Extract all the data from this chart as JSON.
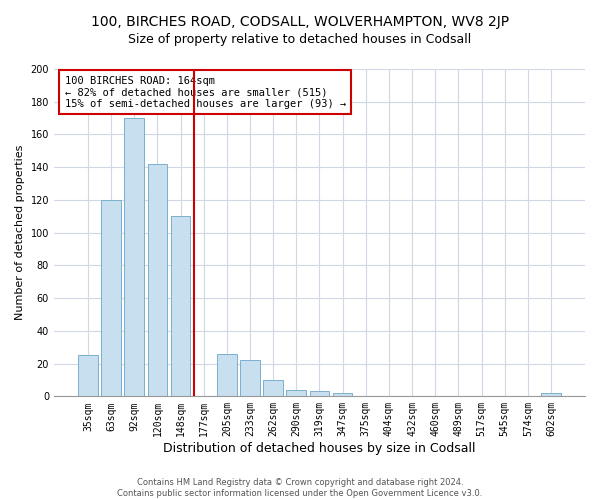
{
  "title": "100, BIRCHES ROAD, CODSALL, WOLVERHAMPTON, WV8 2JP",
  "subtitle": "Size of property relative to detached houses in Codsall",
  "xlabel": "Distribution of detached houses by size in Codsall",
  "ylabel": "Number of detached properties",
  "bar_labels": [
    "35sqm",
    "63sqm",
    "92sqm",
    "120sqm",
    "148sqm",
    "177sqm",
    "205sqm",
    "233sqm",
    "262sqm",
    "290sqm",
    "319sqm",
    "347sqm",
    "375sqm",
    "404sqm",
    "432sqm",
    "460sqm",
    "489sqm",
    "517sqm",
    "545sqm",
    "574sqm",
    "602sqm"
  ],
  "bar_values": [
    25,
    120,
    170,
    142,
    110,
    0,
    26,
    22,
    10,
    4,
    3,
    2,
    0,
    0,
    0,
    0,
    0,
    0,
    0,
    0,
    2
  ],
  "bar_color": "#c8dff0",
  "bar_edgecolor": "#7ab0ce",
  "vline_color": "#cc0000",
  "annotation_title": "100 BIRCHES ROAD: 164sqm",
  "annotation_line1": "← 82% of detached houses are smaller (515)",
  "annotation_line2": "15% of semi-detached houses are larger (93) →",
  "annotation_box_facecolor": "#ffffff",
  "annotation_box_edgecolor": "#cc0000",
  "ylim": [
    0,
    200
  ],
  "yticks": [
    0,
    20,
    40,
    60,
    80,
    100,
    120,
    140,
    160,
    180,
    200
  ],
  "footer1": "Contains HM Land Registry data © Crown copyright and database right 2024.",
  "footer2": "Contains public sector information licensed under the Open Government Licence v3.0.",
  "fig_facecolor": "#ffffff",
  "plot_facecolor": "#ffffff",
  "grid_color": "#d0d8e8",
  "title_fontsize": 10,
  "subtitle_fontsize": 9,
  "xlabel_fontsize": 9,
  "ylabel_fontsize": 8,
  "tick_fontsize": 7,
  "footer_fontsize": 6,
  "vline_x_index": 5
}
